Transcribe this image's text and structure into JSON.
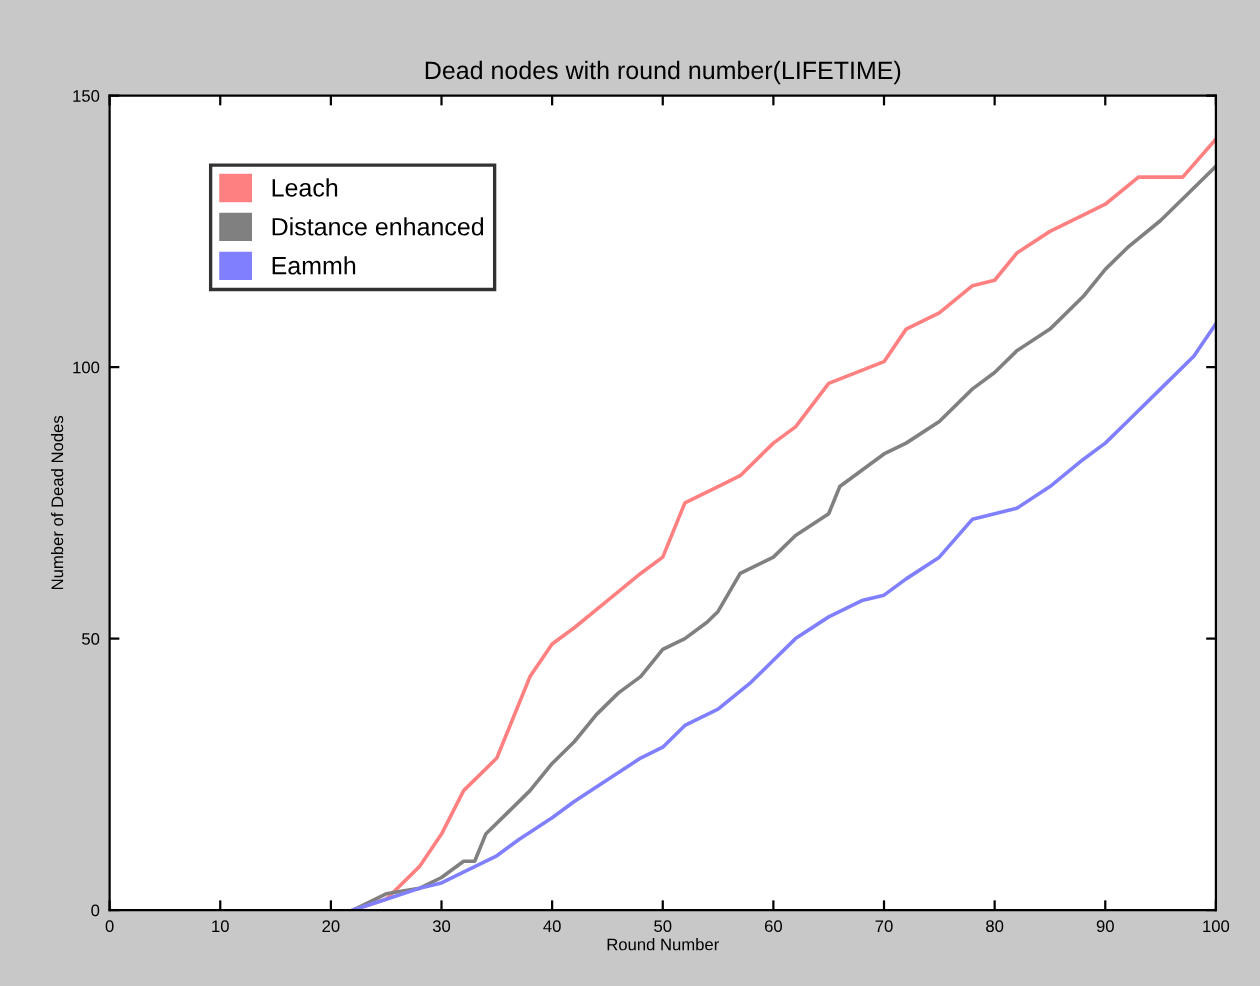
{
  "chart_data": {
    "type": "line",
    "title": "Dead nodes with round number(LIFETIME)",
    "xlabel": "Round Number",
    "ylabel": "Number of Dead Nodes",
    "xlim": [
      0,
      100
    ],
    "ylim": [
      0,
      150
    ],
    "xticks": [
      0,
      10,
      20,
      30,
      40,
      50,
      60,
      70,
      80,
      90,
      100
    ],
    "yticks": [
      0,
      50,
      100,
      150
    ],
    "grid": false,
    "legend": "top left",
    "marker": "none",
    "line_style": "solid",
    "series": [
      {
        "name": "Leach",
        "color": "#ff8080",
        "x": [
          22,
          25,
          28,
          30,
          32,
          35,
          38,
          40,
          42,
          45,
          48,
          50,
          52,
          55,
          57,
          60,
          62,
          65,
          70,
          72,
          75,
          78,
          80,
          82,
          85,
          88,
          90,
          93,
          97,
          100
        ],
        "values": [
          0,
          2,
          8,
          14,
          22,
          28,
          43,
          49,
          52,
          57,
          62,
          65,
          75,
          78,
          80,
          86,
          89,
          97,
          101,
          107,
          110,
          115,
          116,
          121,
          125,
          128,
          130,
          135,
          135,
          142
        ]
      },
      {
        "name": "Distance enhanced",
        "color": "#808080",
        "x": [
          22,
          25,
          28,
          30,
          32,
          33,
          34,
          36,
          38,
          40,
          42,
          44,
          46,
          48,
          50,
          52,
          54,
          55,
          57,
          60,
          62,
          65,
          66,
          68,
          70,
          72,
          75,
          78,
          80,
          82,
          85,
          88,
          90,
          92,
          95,
          98,
          100
        ],
        "values": [
          0,
          3,
          4,
          6,
          9,
          9,
          14,
          18,
          22,
          27,
          31,
          36,
          40,
          43,
          48,
          50,
          53,
          55,
          62,
          65,
          69,
          73,
          78,
          81,
          84,
          86,
          90,
          96,
          99,
          103,
          107,
          113,
          118,
          122,
          127,
          133,
          137
        ]
      },
      {
        "name": "Eammh",
        "color": "#8080ff",
        "x": [
          22,
          25,
          28,
          30,
          33,
          35,
          37,
          40,
          42,
          45,
          48,
          50,
          52,
          55,
          58,
          60,
          62,
          65,
          68,
          70,
          72,
          75,
          78,
          80,
          82,
          85,
          88,
          90,
          92,
          95,
          98,
          100
        ],
        "values": [
          0,
          2,
          4,
          5,
          8,
          10,
          13,
          17,
          20,
          24,
          28,
          30,
          34,
          37,
          42,
          46,
          50,
          54,
          57,
          58,
          61,
          65,
          72,
          73,
          74,
          78,
          83,
          86,
          90,
          96,
          102,
          108
        ]
      }
    ]
  }
}
